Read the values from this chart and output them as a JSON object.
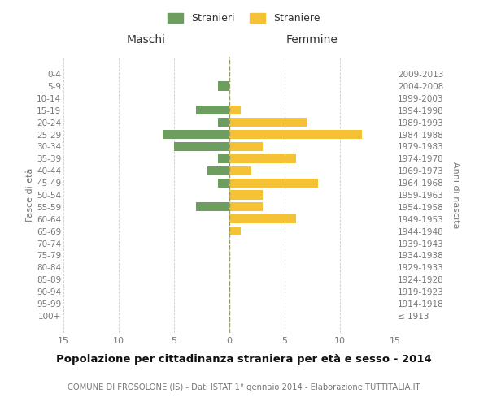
{
  "age_groups": [
    "100+",
    "95-99",
    "90-94",
    "85-89",
    "80-84",
    "75-79",
    "70-74",
    "65-69",
    "60-64",
    "55-59",
    "50-54",
    "45-49",
    "40-44",
    "35-39",
    "30-34",
    "25-29",
    "20-24",
    "15-19",
    "10-14",
    "5-9",
    "0-4"
  ],
  "birth_years": [
    "≤ 1913",
    "1914-1918",
    "1919-1923",
    "1924-1928",
    "1929-1933",
    "1934-1938",
    "1939-1943",
    "1944-1948",
    "1949-1953",
    "1954-1958",
    "1959-1963",
    "1964-1968",
    "1969-1973",
    "1974-1978",
    "1979-1983",
    "1984-1988",
    "1989-1993",
    "1994-1998",
    "1999-2003",
    "2004-2008",
    "2009-2013"
  ],
  "maschi": [
    0,
    0,
    0,
    0,
    0,
    0,
    0,
    0,
    0,
    3,
    0,
    1,
    2,
    1,
    5,
    6,
    1,
    3,
    0,
    1,
    0
  ],
  "femmine": [
    0,
    0,
    0,
    0,
    0,
    0,
    0,
    1,
    6,
    3,
    3,
    8,
    2,
    6,
    3,
    12,
    7,
    1,
    0,
    0,
    0
  ],
  "color_maschi": "#6e9e5f",
  "color_femmine": "#f5c135",
  "title": "Popolazione per cittadinanza straniera per età e sesso - 2014",
  "subtitle": "COMUNE DI FROSOLONE (IS) - Dati ISTAT 1° gennaio 2014 - Elaborazione TUTTITALIA.IT",
  "legend_maschi": "Stranieri",
  "legend_femmine": "Straniere",
  "header_left": "Maschi",
  "header_right": "Femmine",
  "ylabel_left": "Fasce di età",
  "ylabel_right": "Anni di nascita",
  "xlim": 15,
  "background_color": "#ffffff",
  "grid_color": "#cccccc",
  "text_color": "#777777",
  "header_color": "#333333",
  "title_color": "#111111",
  "bar_height": 0.75
}
